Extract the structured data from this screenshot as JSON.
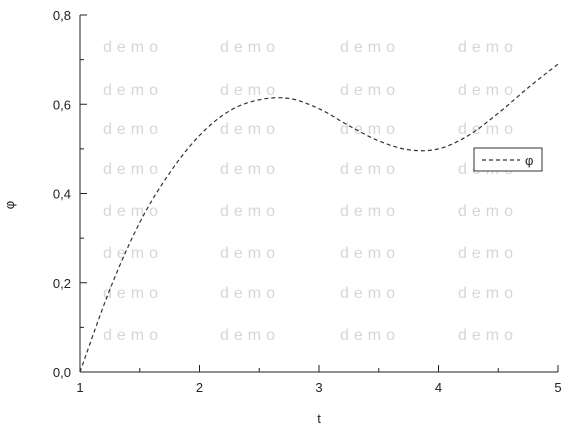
{
  "chart_data": {
    "type": "line",
    "xlabel": "t",
    "ylabel": "φ",
    "xlim": [
      1,
      5
    ],
    "ylim": [
      0,
      0.8
    ],
    "x_ticks": [
      1,
      2,
      3,
      4,
      5
    ],
    "y_ticks": [
      0,
      0.2,
      0.4,
      0.6,
      0.8
    ],
    "x_tick_labels": [
      "1",
      "2",
      "3",
      "4",
      "5"
    ],
    "y_tick_labels": [
      "0,0",
      "0,2",
      "0,4",
      "0,6",
      "0,8"
    ],
    "grid": false,
    "legend": {
      "position": "right",
      "entries": [
        "φ"
      ]
    },
    "watermark": "demo",
    "series": [
      {
        "name": "φ",
        "line_style": "dashed",
        "color": "#333333",
        "x": [
          1.0,
          1.25,
          1.5,
          1.75,
          2.0,
          2.25,
          2.5,
          2.75,
          3.0,
          3.25,
          3.5,
          3.75,
          4.0,
          4.25,
          4.5,
          4.75,
          5.0
        ],
        "y": [
          0.0,
          0.185,
          0.335,
          0.446,
          0.53,
          0.585,
          0.61,
          0.613,
          0.59,
          0.552,
          0.518,
          0.498,
          0.5,
          0.53,
          0.58,
          0.637,
          0.69
        ]
      }
    ]
  }
}
